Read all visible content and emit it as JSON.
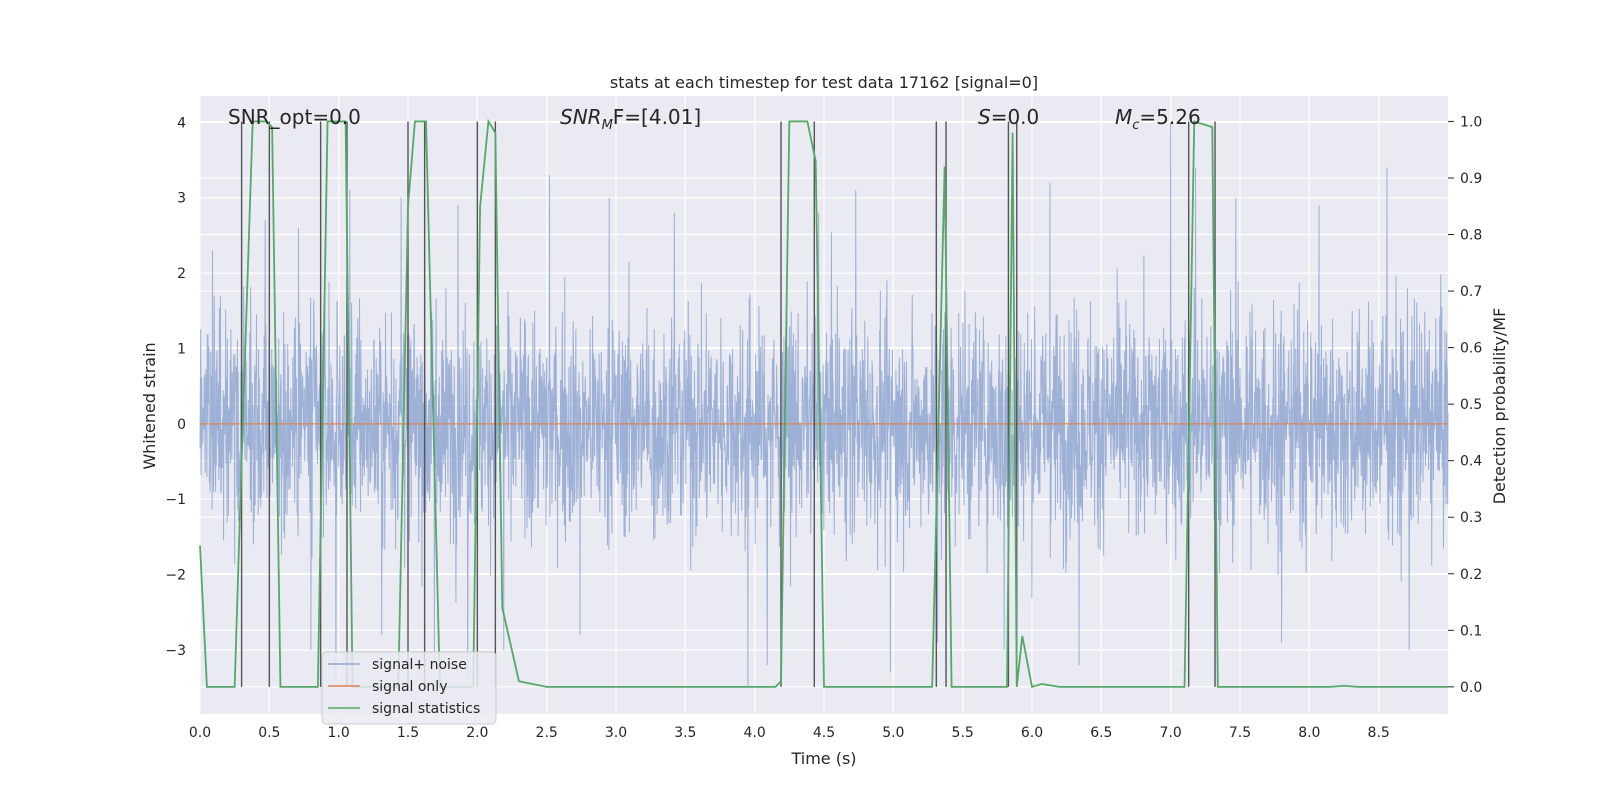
{
  "chart_data": {
    "type": "line",
    "title": "stats at each timestep for test data 17162 [signal=0]",
    "xlabel": "Time (s)",
    "ylabel": "Whitened strain",
    "ylabel_right": "Detection probability/MF",
    "xlim": [
      0.0,
      9.0
    ],
    "ylim": [
      -3.85,
      4.35
    ],
    "ylim_right": [
      -0.048,
      1.045
    ],
    "x_ticks": [
      0.0,
      0.5,
      1.0,
      1.5,
      2.0,
      2.5,
      3.0,
      3.5,
      4.0,
      4.5,
      5.0,
      5.5,
      6.0,
      6.5,
      7.0,
      7.5,
      8.0,
      8.5
    ],
    "x_tick_labels": [
      "0.0",
      "0.5",
      "1.0",
      "1.5",
      "2.0",
      "2.5",
      "3.0",
      "3.5",
      "4.0",
      "4.5",
      "5.0",
      "5.5",
      "6.0",
      "6.5",
      "7.0",
      "7.5",
      "8.0",
      "8.5"
    ],
    "y_ticks": [
      -3,
      -2,
      -1,
      0,
      1,
      2,
      3,
      4
    ],
    "y_tick_labels": [
      "−3",
      "−2",
      "−1",
      "0",
      "1",
      "2",
      "3",
      "4"
    ],
    "y_right_ticks": [
      0.0,
      0.1,
      0.2,
      0.3,
      0.4,
      0.5,
      0.6,
      0.7,
      0.8,
      0.9,
      1.0
    ],
    "y_right_tick_labels": [
      "0.0",
      "0.1",
      "0.2",
      "0.3",
      "0.4",
      "0.5",
      "0.6",
      "0.7",
      "0.8",
      "0.9",
      "1.0"
    ],
    "annotations": [
      {
        "id": "snr-opt",
        "text": "SNR_opt=0.0"
      },
      {
        "id": "snr-mf",
        "text": "SNR_MF=[4.01]",
        "italic_part": "SNR",
        "sub": "M",
        "rest": "F=[4.01]"
      },
      {
        "id": "s",
        "text": "S=0.0",
        "italic_part": "S",
        "rest": "=0.0"
      },
      {
        "id": "mc",
        "text": "M_c=5.26",
        "italic_part": "M",
        "sub": "c",
        "rest": "=5.26"
      }
    ],
    "series": [
      {
        "name": "signal+ noise",
        "axis": "left",
        "color": "#8fa6d0",
        "note": "dense whitened noise, approx amplitude range -3.5 to 3.9",
        "spikes": [
          [
            0.09,
            2.3
          ],
          [
            0.3,
            3.1
          ],
          [
            0.47,
            2.7
          ],
          [
            0.71,
            2.6
          ],
          [
            0.8,
            -3.0
          ],
          [
            0.98,
            -3.4
          ],
          [
            1.08,
            3.1
          ],
          [
            1.31,
            -2.8
          ],
          [
            1.45,
            3.0
          ],
          [
            1.69,
            -3.2
          ],
          [
            1.86,
            2.9
          ],
          [
            1.93,
            -3.4
          ],
          [
            2.19,
            -3.0
          ],
          [
            2.52,
            3.3
          ],
          [
            2.74,
            -2.8
          ],
          [
            2.95,
            3.0
          ],
          [
            3.42,
            2.8
          ],
          [
            3.95,
            -3.5
          ],
          [
            4.09,
            -3.2
          ],
          [
            4.46,
            2.8
          ],
          [
            4.73,
            3.1
          ],
          [
            4.98,
            -3.3
          ],
          [
            5.32,
            -2.9
          ],
          [
            5.8,
            -3.0
          ],
          [
            6.13,
            3.2
          ],
          [
            6.34,
            -3.2
          ],
          [
            7.0,
            4.0
          ],
          [
            7.18,
            3.4
          ],
          [
            7.47,
            3.0
          ],
          [
            7.8,
            -2.9
          ],
          [
            8.07,
            2.9
          ],
          [
            8.56,
            3.4
          ],
          [
            8.72,
            -3.0
          ]
        ]
      },
      {
        "name": "signal only",
        "axis": "left",
        "color": "#dd8452",
        "x": [
          0.0,
          9.0
        ],
        "y": [
          0.0,
          0.0
        ]
      },
      {
        "name": "signal statistics",
        "axis": "right",
        "color": "#55a868",
        "x": [
          0.0,
          0.05,
          0.25,
          0.3,
          0.38,
          0.48,
          0.52,
          0.58,
          0.62,
          0.85,
          0.92,
          1.05,
          1.1,
          1.43,
          1.5,
          1.55,
          1.63,
          1.73,
          1.8,
          1.97,
          2.02,
          2.08,
          2.13,
          2.18,
          2.3,
          2.5,
          4.15,
          4.19,
          4.25,
          4.38,
          4.44,
          4.5,
          4.55,
          4.65,
          5.28,
          5.37,
          5.42,
          5.82,
          5.86,
          5.89,
          5.93,
          6.0,
          6.07,
          6.2,
          7.1,
          7.17,
          7.3,
          7.34,
          7.4,
          8.15,
          8.25,
          8.35,
          9.0
        ],
        "y": [
          0.25,
          0.0,
          0.0,
          0.4,
          1.0,
          1.0,
          0.99,
          0.0,
          0.0,
          0.0,
          1.0,
          1.0,
          0.0,
          0.0,
          0.85,
          1.0,
          1.0,
          0.0,
          0.0,
          0.0,
          0.85,
          1.0,
          0.98,
          0.14,
          0.01,
          0.0,
          0.0,
          0.01,
          1.0,
          1.0,
          0.93,
          0.0,
          0.0,
          0.0,
          0.0,
          0.92,
          0.0,
          0.0,
          0.98,
          0.0,
          0.09,
          0.0,
          0.005,
          0.0,
          0.0,
          1.0,
          0.99,
          0.0,
          0.0,
          0.0,
          0.002,
          0.0,
          0.0
        ]
      }
    ],
    "vertical_markers": [
      0.3,
      0.5,
      0.87,
      1.06,
      1.5,
      1.62,
      2.0,
      2.13,
      4.19,
      4.43,
      5.31,
      5.38,
      5.83,
      5.89,
      7.13,
      7.32
    ],
    "legend": {
      "placement": "lower-left",
      "entries": [
        "signal+ noise",
        "signal only",
        "signal statistics"
      ]
    }
  }
}
